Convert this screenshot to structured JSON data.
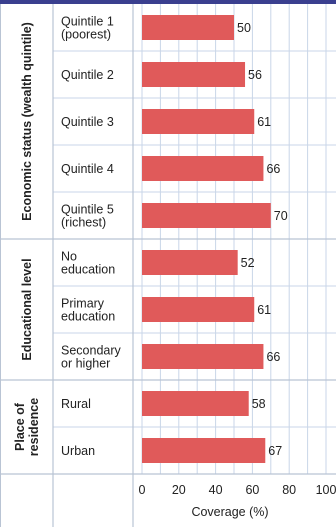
{
  "chart_data": {
    "type": "bar",
    "orientation": "horizontal",
    "xlabel": "Coverage (%)",
    "xlim": [
      0,
      100
    ],
    "xticks": [
      "0",
      "20",
      "40",
      "60",
      "80",
      "100"
    ],
    "grid": true,
    "bar_color": "#e05a5a",
    "header_color": "#3a3f8f",
    "groups": [
      {
        "name": "Economic status (wealth quintile)",
        "categories": [
          "Quintile 1\n(poorest)",
          "Quintile 2",
          "Quintile 3",
          "Quintile 4",
          "Quintile 5\n(richest)"
        ],
        "values": [
          50,
          56,
          61,
          66,
          70
        ]
      },
      {
        "name": "Educational level",
        "categories": [
          "No\neducation",
          "Primary\neducation",
          "Secondary\nor higher"
        ],
        "values": [
          52,
          61,
          66
        ]
      },
      {
        "name": "Place of\nresidence",
        "categories": [
          "Rural",
          "Urban"
        ],
        "values": [
          58,
          67
        ]
      }
    ]
  }
}
